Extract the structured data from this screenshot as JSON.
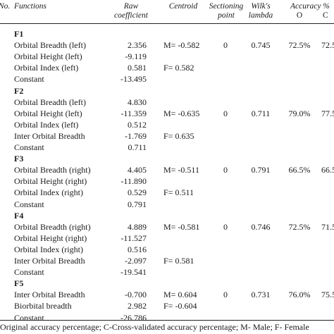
{
  "header": {
    "no": "No.",
    "functions": "Functions",
    "raw_line1": "Raw",
    "raw_line2": "coefficient",
    "centroid": "Centroid",
    "sectioning_line1": "Sectioning",
    "sectioning_line2": "point",
    "wilks_line1": "Wilk's",
    "wilks_line2": "lambda",
    "accuracy": "Accuracy %",
    "acc_o": "O",
    "acc_c": "C"
  },
  "rows": [
    {
      "group": "F1"
    },
    {
      "fn": "Orbital Breadth (left)",
      "raw": "2.356",
      "centroid": "M= -0.582",
      "sectioning": "0",
      "wilks": "0.745",
      "acc_o": "72.5%",
      "acc_c": "72.5"
    },
    {
      "fn": "Orbital Height (left)",
      "raw": "-9.119"
    },
    {
      "fn": "Orbital Index (left)",
      "raw": "0.581",
      "centroid": "F= 0.582"
    },
    {
      "fn": "Constant",
      "raw": "-13.495"
    },
    {
      "group": "F2"
    },
    {
      "fn": "Orbital Breadth (left)",
      "raw": "4.830"
    },
    {
      "fn": "Orbital Height (left)",
      "raw": "-11.359",
      "centroid": "M= -0.635",
      "sectioning": "0",
      "wilks": "0.711",
      "acc_o": "79.0%",
      "acc_c": "77.5"
    },
    {
      "fn": "Orbital Index (left)",
      "raw": "0.512"
    },
    {
      "fn": "Inter Orbital Breadth",
      "raw": "-1.769",
      "centroid": "F= 0.635"
    },
    {
      "fn": "Constant",
      "raw": "0.711"
    },
    {
      "group": "F3"
    },
    {
      "fn": "Orbital Breadth (right)",
      "raw": "4.405",
      "centroid": "M= -0.511",
      "sectioning": "0",
      "wilks": "0.791",
      "acc_o": "66.5%",
      "acc_c": "66.5"
    },
    {
      "fn": "Orbital Height (right)",
      "raw": "-11.890"
    },
    {
      "fn": "Orbital Index (right)",
      "raw": "0.529",
      "centroid": "F= 0.511"
    },
    {
      "fn": "Constant",
      "raw": "0.791"
    },
    {
      "group": "F4"
    },
    {
      "fn": "Orbital Breadth (right)",
      "raw": "4.889",
      "centroid": "M= -0.581",
      "sectioning": "0",
      "wilks": "0.746",
      "acc_o": "72.5%",
      "acc_c": "71.5"
    },
    {
      "fn": "Orbital Height (right)",
      "raw": "-11.527"
    },
    {
      "fn": "Orbital Index (right)",
      "raw": "0.516"
    },
    {
      "fn": "Inter Orbital Breadth",
      "raw": "-2.097",
      "centroid": "F= 0.581"
    },
    {
      "fn": "Constant",
      "raw": "-19.541"
    },
    {
      "group": "F5"
    },
    {
      "fn": "Inter Orbital Breadth",
      "raw": "-0.700",
      "centroid": "M= 0.604",
      "sectioning": "0",
      "wilks": "0.731",
      "acc_o": "76.0%",
      "acc_c": "75.5"
    },
    {
      "fn": "Biorbital breadth",
      "raw": "2.982",
      "centroid": "F= -0.604"
    },
    {
      "fn": "Constant",
      "raw": "-26.786"
    }
  ],
  "footnote": "Original accuracy percentage; C-Cross-validated accuracy percentage; M- Male; F- Female"
}
